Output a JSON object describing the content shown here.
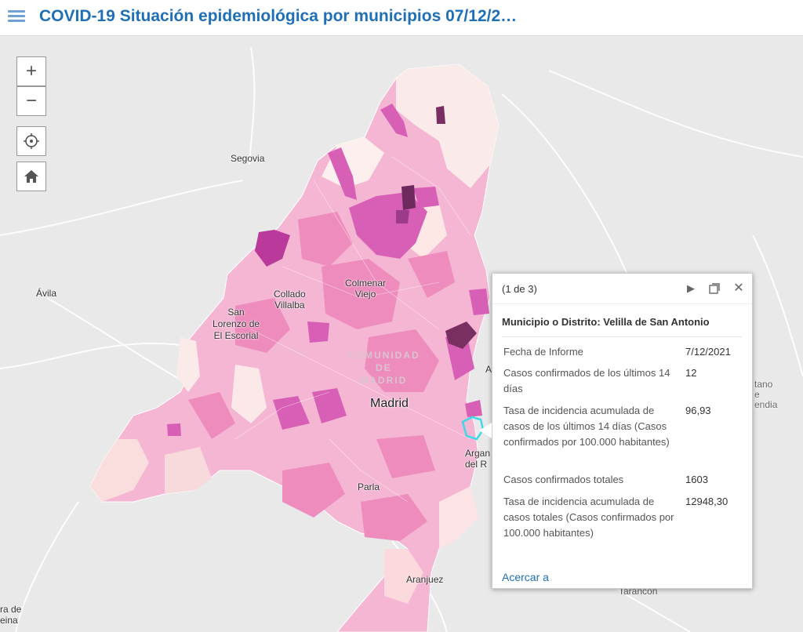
{
  "header": {
    "title": "COVID-19 Situación epidemiológica por municipios 07/12/2…"
  },
  "controls": {
    "zoom_in": "+",
    "zoom_out": "−"
  },
  "map_labels": {
    "segovia": "Segovia",
    "avila": "Ávila",
    "collado_villalba_1": "Collado",
    "collado_villalba_2": "Villalba",
    "colmenar_viejo_1": "Colmenar",
    "colmenar_viejo_2": "Viejo",
    "san_lorenzo_1": "San",
    "san_lorenzo_2": "Lorenzo de",
    "san_lorenzo_3": "El Escorial",
    "region_1": "COMUNIDAD",
    "region_2": "DE",
    "region_3": "MADRID",
    "madrid": "Madrid",
    "parla": "Parla",
    "aranjuez": "Aranjuez",
    "arganda_1": "Argan",
    "arganda_2": "del R",
    "tarancon": "Tarancon",
    "lower_left_1": "ra de",
    "lower_left_2": "eina",
    "right_1": "tano",
    "right_2": "e",
    "right_3": "endia",
    "right_a": "A"
  },
  "popup": {
    "pager": "(1 de 3)",
    "title": "Municipio o Distrito: Velilla de San Antonio",
    "rows": [
      {
        "label": "Fecha de Informe",
        "value": "7/12/2021"
      },
      {
        "label": "Casos confirmados de los últimos 14 días",
        "value": "12"
      },
      {
        "label": "Tasa de incidencia acumulada de casos de los últimos 14 días (Casos confirmados por 100.000 habitantes)",
        "value": "96,93"
      },
      {
        "label": "Casos confirmados totales",
        "value": "1603"
      },
      {
        "label": "Tasa de incidencia acumulada de casos totales (Casos confirmados por 100.000 habitantes)",
        "value": "12948,30"
      }
    ],
    "zoom_link": "Acercar a"
  },
  "colors": {
    "accent": "#1f6fb8",
    "choropleth_low": "#fbeaea",
    "choropleth_mid": "#f2a3c8",
    "choropleth_high": "#d35bb0",
    "choropleth_max": "#6e2a5c"
  },
  "icons": {
    "menu": "hamburger-icon",
    "locate": "locate-icon",
    "home": "home-icon",
    "next": "play-icon",
    "dock": "dock-icon",
    "close": "close-icon"
  }
}
